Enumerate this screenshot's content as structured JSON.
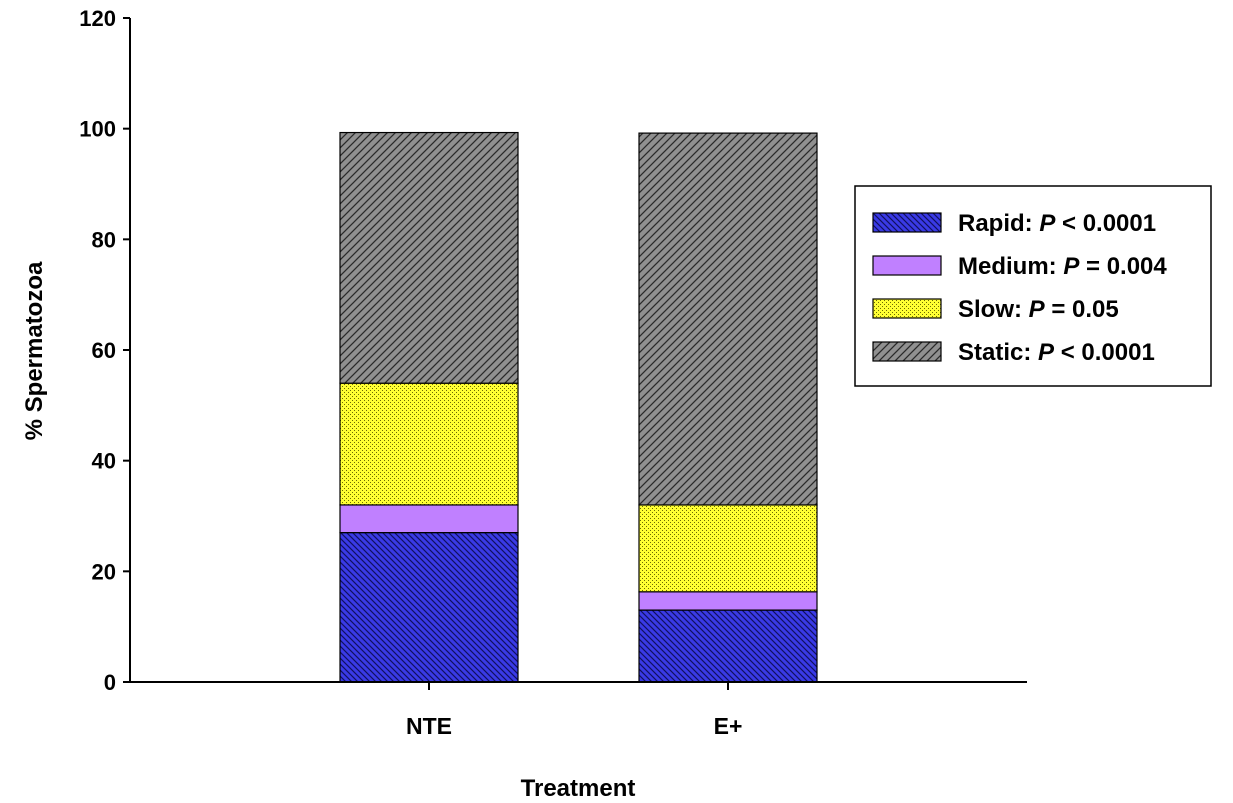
{
  "chart_data": {
    "type": "bar",
    "stacked": true,
    "categories": [
      "NTE",
      "E+"
    ],
    "series": [
      {
        "name": "Rapid",
        "p_text": "< 0.0001",
        "values": [
          27,
          13
        ],
        "color": "#3a3ae6",
        "pattern": "hatch-back"
      },
      {
        "name": "Medium",
        "p_text": "= 0.004",
        "values": [
          5,
          3.3
        ],
        "color": "#c080ff",
        "pattern": "solid"
      },
      {
        "name": "Slow",
        "p_text": "= 0.05",
        "values": [
          22,
          15.7
        ],
        "color": "#ffff33",
        "pattern": "dots"
      },
      {
        "name": "Static",
        "p_text": "< 0.0001",
        "values": [
          45.3,
          67.2
        ],
        "color": "#909090",
        "pattern": "hatch-forward"
      }
    ],
    "title": "",
    "xlabel": "Treatment",
    "ylabel": "% Spermatozoa",
    "ylim": [
      0,
      120
    ],
    "yticks": [
      0,
      20,
      40,
      60,
      80,
      100,
      120
    ],
    "grid": false,
    "legend_position": "right",
    "p_symbol": "P"
  }
}
